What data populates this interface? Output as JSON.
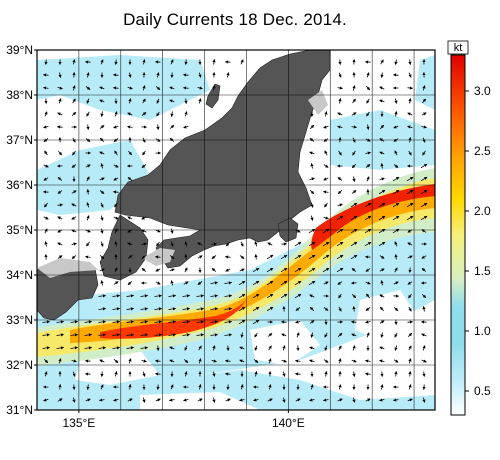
{
  "title": "Daily Currents 18 Dec. 2014.",
  "map": {
    "lon_range": [
      134.0,
      143.5
    ],
    "lat_range": [
      31.0,
      39.0
    ],
    "lat_labels": [
      {
        "value": 39,
        "label": "39°N"
      },
      {
        "value": 38,
        "label": "38°N"
      },
      {
        "value": 37,
        "label": "37°N"
      },
      {
        "value": 36,
        "label": "36°N"
      },
      {
        "value": 35,
        "label": "35°N"
      },
      {
        "value": 34,
        "label": "34°N"
      },
      {
        "value": 33,
        "label": "33°N"
      },
      {
        "value": 32,
        "label": "32°N"
      },
      {
        "value": 31,
        "label": "31°N"
      }
    ],
    "lon_labels": [
      {
        "value": 135,
        "label": "135°E"
      },
      {
        "value": 140,
        "label": "140°E"
      }
    ],
    "land_color": "#555555",
    "ocean_color": "#ffffff"
  },
  "colorbar": {
    "unit": "kt",
    "range": [
      0.3,
      3.3
    ],
    "ticks": [
      {
        "value": 3.0,
        "label": "3.0"
      },
      {
        "value": 2.5,
        "label": "2.5"
      },
      {
        "value": 2.0,
        "label": "2.0"
      },
      {
        "value": 1.5,
        "label": "1.5"
      },
      {
        "value": 1.0,
        "label": "1.0"
      },
      {
        "value": 0.5,
        "label": "0.5"
      }
    ],
    "colors": [
      "#ffffff",
      "#bfeef8",
      "#9fe2f0",
      "#7fd8ea",
      "#c8ecd0",
      "#f2f08a",
      "#ffe000",
      "#ffb000",
      "#ff7a00",
      "#ff3800",
      "#e00000"
    ]
  }
}
